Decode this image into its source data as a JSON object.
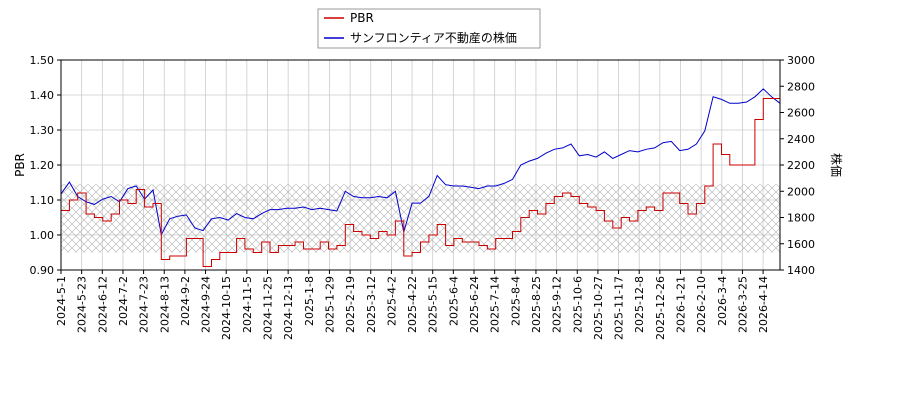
{
  "chart_data": {
    "type": "line",
    "ylabel_left": "PBR",
    "ylabel_right": "株価",
    "ylim_left": [
      0.9,
      1.5
    ],
    "ylim_right": [
      1400,
      3000
    ],
    "yticks_left": [
      "0.90",
      "1.00",
      "1.10",
      "1.20",
      "1.30",
      "1.40",
      "1.50"
    ],
    "yticks_right": [
      "1400",
      "1600",
      "1800",
      "2000",
      "2200",
      "2400",
      "2600",
      "2800",
      "3000"
    ],
    "x_ticks": [
      "2024-5-1",
      "2024-5-23",
      "2024-6-12",
      "2024-7-2",
      "2024-7-23",
      "2024-8-13",
      "2024-9-2",
      "2024-9-24",
      "2024-10-15",
      "2024-11-5",
      "2024-11-25",
      "2024-12-13",
      "2025-1-8",
      "2025-1-29",
      "2025-2-19",
      "2025-3-12",
      "2025-4-2",
      "2025-4-22",
      "2025-5-15",
      "2025-6-4",
      "2025-6-24",
      "2025-7-14",
      "2025-8-4",
      "2025-8-25",
      "2025-9-12",
      "2025-10-6",
      "2025-10-27",
      "2025-11-17",
      "2025-12-8",
      "2025-12-26",
      "2026-1-21",
      "2026-2-10",
      "2026-3-4",
      "2026-3-25",
      "2026-4-14"
    ],
    "grid": true,
    "shaded_band_left": [
      0.95,
      1.145
    ],
    "legend_placement": "top-center",
    "series": [
      {
        "name": "PBR",
        "axis": "left",
        "color": "#cc0000",
        "values": [
          1.07,
          1.1,
          1.12,
          1.06,
          1.05,
          1.04,
          1.06,
          1.1,
          1.09,
          1.13,
          1.08,
          1.09,
          0.93,
          0.94,
          0.94,
          0.99,
          0.99,
          0.91,
          0.93,
          0.95,
          0.95,
          0.99,
          0.96,
          0.95,
          0.98,
          0.95,
          0.97,
          0.97,
          0.98,
          0.96,
          0.96,
          0.98,
          0.96,
          0.97,
          1.03,
          1.01,
          1.0,
          0.99,
          1.01,
          1.0,
          1.04,
          0.94,
          0.95,
          0.98,
          1.0,
          1.03,
          0.97,
          0.99,
          0.98,
          0.98,
          0.97,
          0.96,
          0.99,
          0.99,
          1.01,
          1.05,
          1.07,
          1.06,
          1.09,
          1.11,
          1.12,
          1.11,
          1.09,
          1.08,
          1.07,
          1.04,
          1.02,
          1.05,
          1.04,
          1.07,
          1.08,
          1.07,
          1.12,
          1.12,
          1.09,
          1.06,
          1.09,
          1.14,
          1.26,
          1.23,
          1.2,
          1.2,
          1.2,
          1.33,
          1.39,
          1.39,
          1.39
        ]
      },
      {
        "name": "サンフロンティア不動産の株価",
        "axis": "right",
        "color": "#0000cc",
        "values": [
          1980,
          2070,
          1960,
          1920,
          1900,
          1940,
          1960,
          1920,
          2020,
          2040,
          1940,
          2010,
          1670,
          1790,
          1810,
          1820,
          1720,
          1700,
          1790,
          1800,
          1780,
          1830,
          1800,
          1790,
          1830,
          1860,
          1860,
          1870,
          1870,
          1880,
          1860,
          1870,
          1860,
          1850,
          2000,
          1960,
          1950,
          1950,
          1960,
          1950,
          2000,
          1690,
          1910,
          1910,
          1960,
          2120,
          2050,
          2040,
          2040,
          2030,
          2020,
          2040,
          2040,
          2060,
          2090,
          2200,
          2230,
          2250,
          2290,
          2320,
          2330,
          2360,
          2270,
          2280,
          2260,
          2300,
          2250,
          2280,
          2310,
          2300,
          2320,
          2330,
          2370,
          2380,
          2310,
          2320,
          2360,
          2460,
          2720,
          2700,
          2670,
          2670,
          2680,
          2720,
          2780,
          2720,
          2670
        ]
      }
    ]
  }
}
